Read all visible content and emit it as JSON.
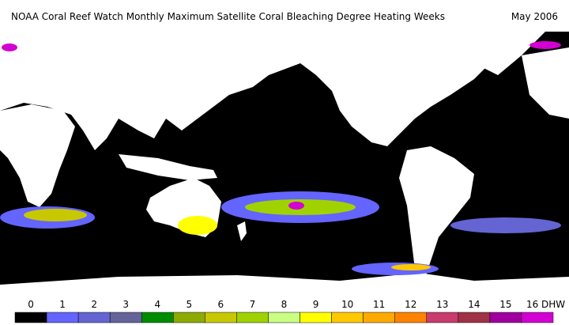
{
  "header": {
    "title": "NOAA Coral Reef Watch Monthly Maximum Satellite Coral Bleaching Degree Heating Weeks",
    "date": "May 2006"
  },
  "legend": {
    "items": [
      {
        "label": "0",
        "color": "#000000"
      },
      {
        "label": "1",
        "color": "#6464ff"
      },
      {
        "label": "2",
        "color": "#6464d2"
      },
      {
        "label": "3",
        "color": "#64649a"
      },
      {
        "label": "4",
        "color": "#008c00"
      },
      {
        "label": "5",
        "color": "#8caa00"
      },
      {
        "label": "6",
        "color": "#c8c800"
      },
      {
        "label": "7",
        "color": "#a0d200"
      },
      {
        "label": "8",
        "color": "#c8ff82"
      },
      {
        "label": "9",
        "color": "#ffff00"
      },
      {
        "label": "10",
        "color": "#ffc800"
      },
      {
        "label": "11",
        "color": "#ffaa00"
      },
      {
        "label": "12",
        "color": "#ff8200"
      },
      {
        "label": "13",
        "color": "#c83c6e"
      },
      {
        "label": "14",
        "color": "#a03246"
      },
      {
        "label": "15",
        "color": "#a000a0"
      },
      {
        "label": "16 DHW",
        "color": "#d200d2"
      }
    ]
  }
}
